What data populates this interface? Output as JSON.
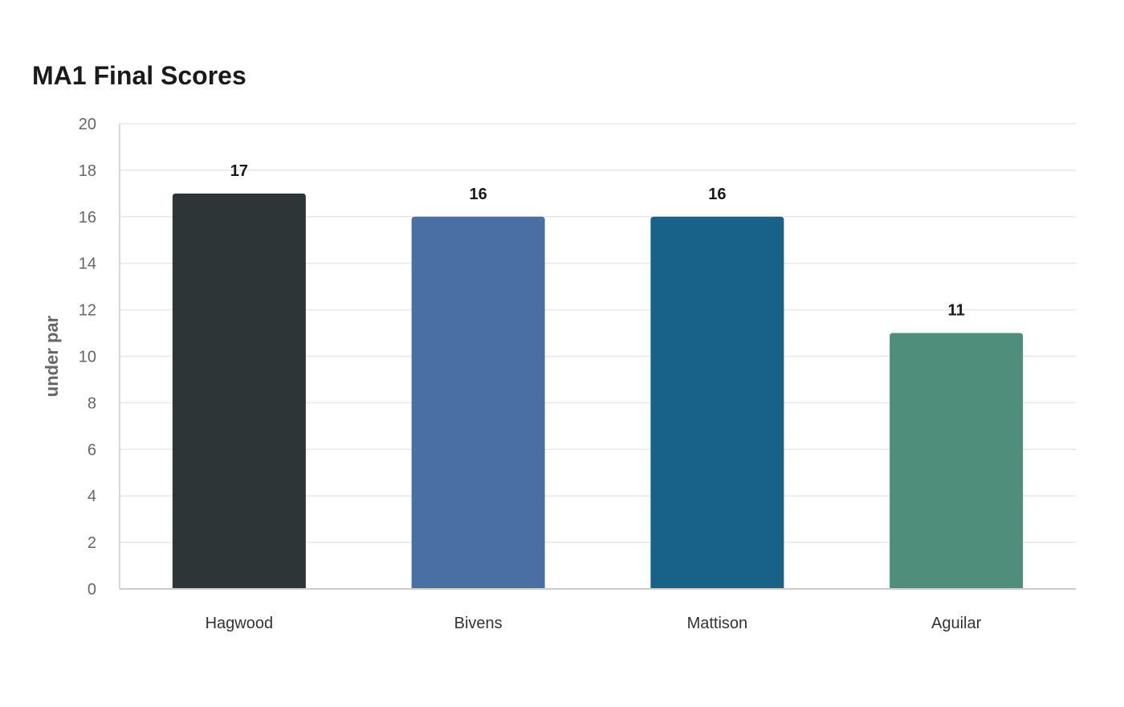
{
  "chart_data": {
    "type": "bar",
    "title": "MA1 Final Scores",
    "xlabel": "",
    "ylabel": "under par",
    "categories": [
      "Hagwood",
      "Bivens",
      "Mattison",
      "Aguilar"
    ],
    "values": [
      17,
      16,
      16,
      11
    ],
    "colors": [
      "#2e3536",
      "#4a6fa5",
      "#186188",
      "#4f8e7b"
    ],
    "ylim": [
      0,
      20
    ],
    "yticks": [
      0,
      2,
      4,
      6,
      8,
      10,
      12,
      14,
      16,
      18,
      20
    ],
    "grid": true,
    "legend": "none"
  }
}
